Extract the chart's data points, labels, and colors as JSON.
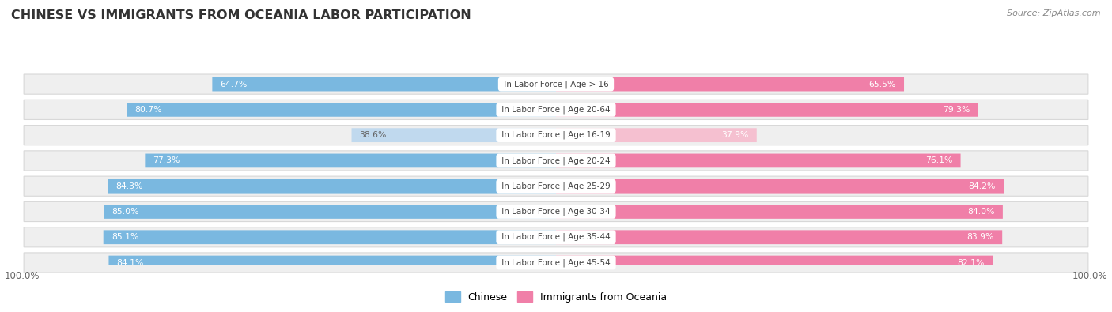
{
  "title": "CHINESE VS IMMIGRANTS FROM OCEANIA LABOR PARTICIPATION",
  "source": "Source: ZipAtlas.com",
  "categories": [
    "In Labor Force | Age > 16",
    "In Labor Force | Age 20-64",
    "In Labor Force | Age 16-19",
    "In Labor Force | Age 20-24",
    "In Labor Force | Age 25-29",
    "In Labor Force | Age 30-34",
    "In Labor Force | Age 35-44",
    "In Labor Force | Age 45-54"
  ],
  "chinese_values": [
    64.7,
    80.7,
    38.6,
    77.3,
    84.3,
    85.0,
    85.1,
    84.1
  ],
  "oceania_values": [
    65.5,
    79.3,
    37.9,
    76.1,
    84.2,
    84.0,
    83.9,
    82.1
  ],
  "chinese_color": "#7ab8e0",
  "oceania_color": "#f07fa8",
  "chinese_color_light": "#c0d9ee",
  "oceania_color_light": "#f5c0d0",
  "row_bg_color": "#efefef",
  "legend_chinese": "Chinese",
  "legend_oceania": "Immigrants from Oceania",
  "max_val": 100.0,
  "fig_width": 14.06,
  "fig_height": 3.95
}
